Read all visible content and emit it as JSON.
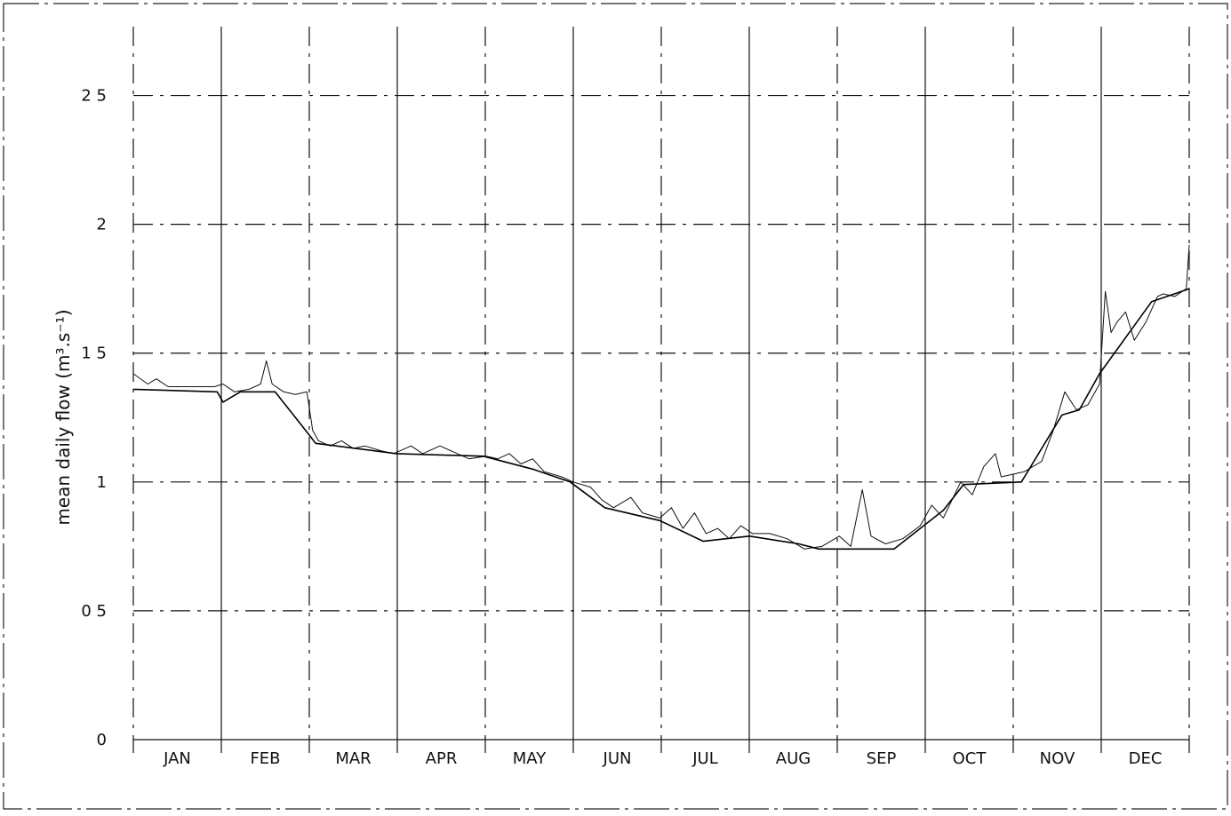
{
  "chart_data": {
    "type": "line",
    "ylabel": "mean daily flow (m³.s⁻¹)",
    "categories": [
      "JAN",
      "FEB",
      "MAR",
      "APR",
      "MAY",
      "JUN",
      "JUL",
      "AUG",
      "SEP",
      "OCT",
      "NOV",
      "DEC"
    ],
    "xlim": [
      0,
      365
    ],
    "ylim": [
      0,
      2.75
    ],
    "yticks": [
      0,
      {
        "value": 0.5,
        "label": "0 5"
      },
      1,
      {
        "value": 1.5,
        "label": "1 5"
      },
      2,
      {
        "value": 2.5,
        "label": "2 5"
      }
    ],
    "grid": true,
    "series": [
      {
        "color": "#111111",
        "x": [
          0,
          5,
          8,
          12,
          20,
          28,
          31,
          35,
          40,
          44,
          46,
          48,
          52,
          56,
          60,
          62,
          64,
          68,
          72,
          76,
          80,
          86,
          90,
          96,
          100,
          106,
          112,
          116,
          122,
          126,
          130,
          134,
          138,
          142,
          148,
          152,
          158,
          162,
          166,
          172,
          176,
          182,
          186,
          190,
          194,
          198,
          202,
          206,
          210,
          214,
          220,
          226,
          232,
          238,
          244,
          248,
          252,
          255,
          260,
          266,
          272,
          276,
          280,
          286,
          290,
          294,
          298,
          300,
          304,
          308,
          314,
          318,
          322,
          326,
          330,
          334,
          336,
          338,
          340,
          343,
          346,
          350,
          354,
          356,
          360,
          364,
          365
        ],
        "values": [
          1.42,
          1.38,
          1.4,
          1.37,
          1.37,
          1.37,
          1.38,
          1.35,
          1.36,
          1.38,
          1.47,
          1.38,
          1.35,
          1.34,
          1.35,
          1.2,
          1.16,
          1.14,
          1.16,
          1.13,
          1.14,
          1.12,
          1.11,
          1.14,
          1.11,
          1.14,
          1.11,
          1.09,
          1.1,
          1.09,
          1.11,
          1.07,
          1.09,
          1.04,
          1.02,
          1.0,
          0.98,
          0.93,
          0.9,
          0.94,
          0.88,
          0.86,
          0.9,
          0.82,
          0.88,
          0.8,
          0.82,
          0.78,
          0.83,
          0.8,
          0.8,
          0.78,
          0.74,
          0.75,
          0.79,
          0.75,
          0.97,
          0.79,
          0.76,
          0.78,
          0.83,
          0.91,
          0.86,
          1.0,
          0.95,
          1.06,
          1.11,
          1.02,
          1.03,
          1.04,
          1.08,
          1.2,
          1.35,
          1.28,
          1.3,
          1.38,
          1.74,
          1.58,
          1.62,
          1.66,
          1.55,
          1.62,
          1.72,
          1.73,
          1.72,
          1.75,
          1.92
        ],
        "width": 1
      },
      {
        "color": "#000000",
        "x": [
          0,
          29,
          31,
          37,
          49,
          61,
          63,
          91,
          121,
          138,
          151,
          163,
          182,
          197,
          213,
          230,
          237,
          263,
          280,
          287,
          307,
          321,
          327,
          334,
          352,
          365
        ],
        "values": [
          1.36,
          1.35,
          1.31,
          1.35,
          1.35,
          1.18,
          1.15,
          1.11,
          1.1,
          1.05,
          1.0,
          0.9,
          0.85,
          0.77,
          0.79,
          0.76,
          0.74,
          0.74,
          0.89,
          0.99,
          1.0,
          1.26,
          1.28,
          1.42,
          1.7,
          1.75
        ],
        "width": 1.6
      }
    ]
  }
}
